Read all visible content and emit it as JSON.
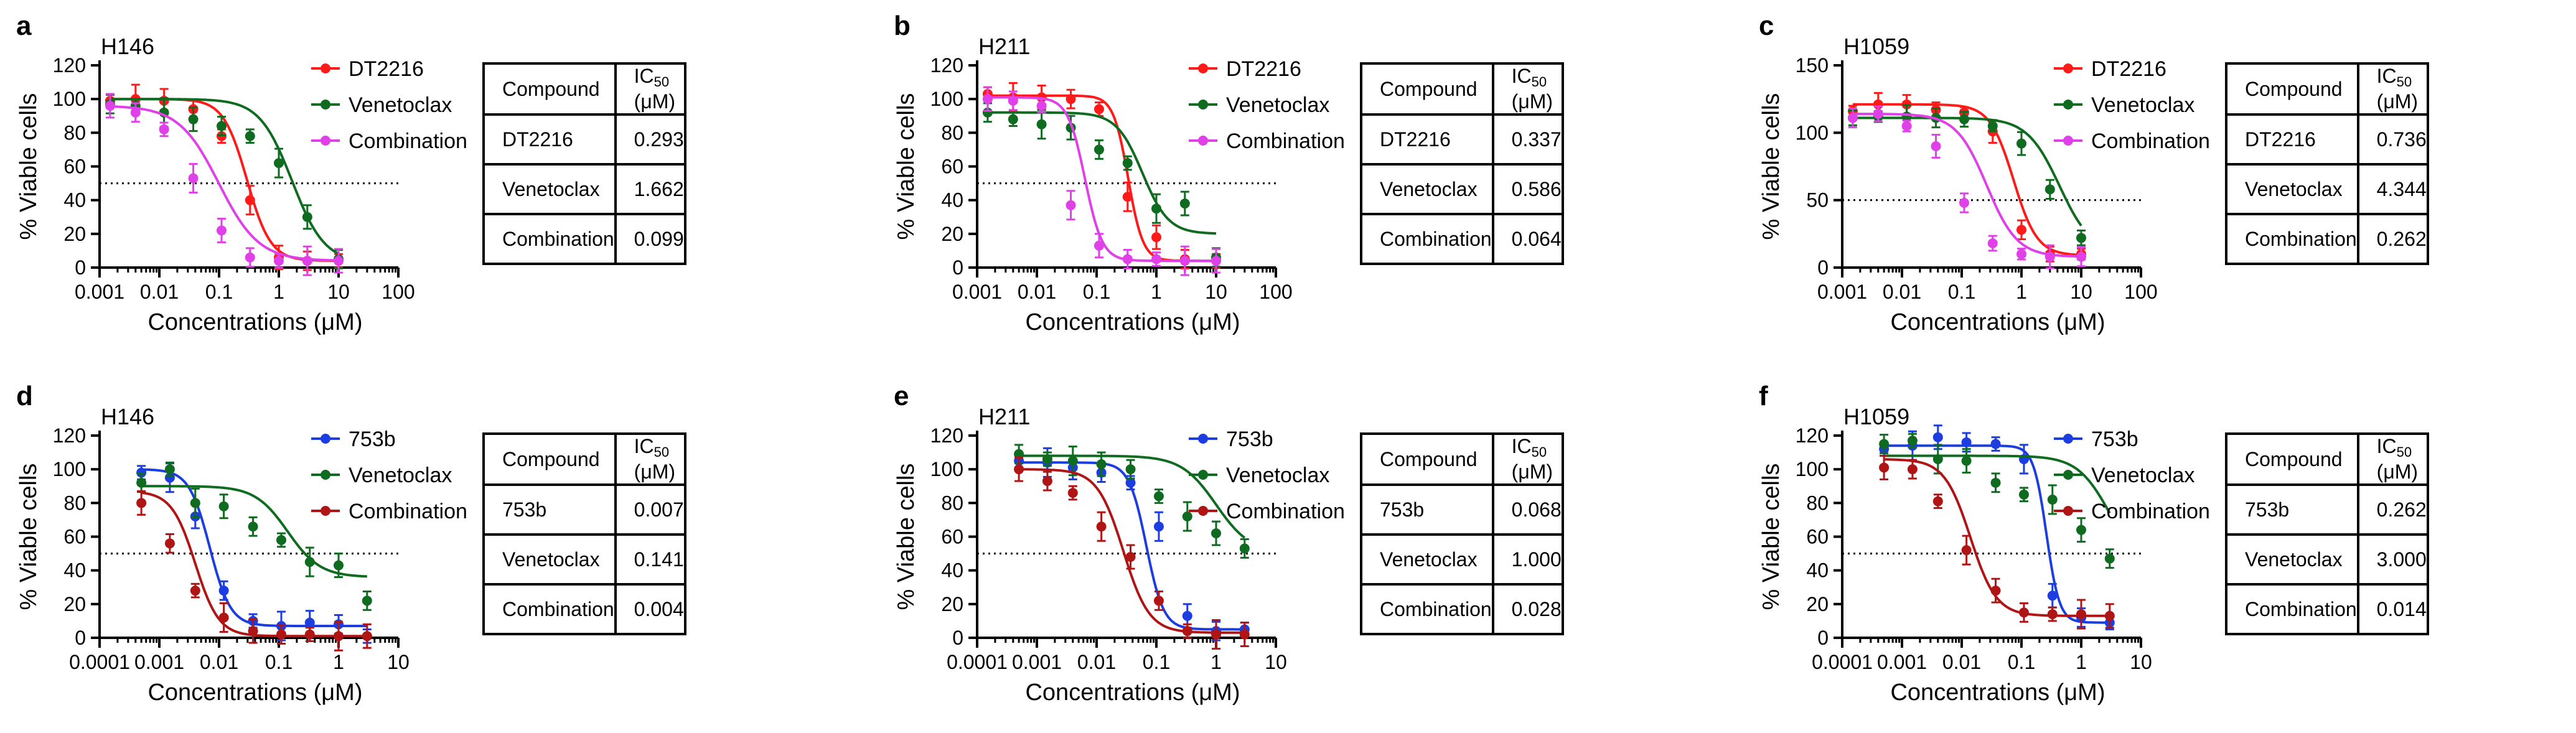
{
  "figure": {
    "xlabel": "Concentrations (μM)",
    "ylabel": "% Viable cells",
    "table_header": {
      "compound": "Compound",
      "ic50_prefix": "IC",
      "ic50_sub": "50",
      "ic50_suffix": " (μM)"
    },
    "panels": [
      {
        "letter": "a",
        "cell_line": "H146",
        "table_rows": [
          {
            "compound": "DT2216",
            "value": "0.293"
          },
          {
            "compound": "Venetoclax",
            "value": "1.662"
          },
          {
            "compound": "Combination",
            "value": "0.099"
          }
        ]
      },
      {
        "letter": "b",
        "cell_line": "H211",
        "table_rows": [
          {
            "compound": "DT2216",
            "value": "0.337"
          },
          {
            "compound": "Venetoclax",
            "value": "0.586"
          },
          {
            "compound": "Combination",
            "value": "0.064"
          }
        ]
      },
      {
        "letter": "c",
        "cell_line": "H1059",
        "table_rows": [
          {
            "compound": "DT2216",
            "value": "0.736"
          },
          {
            "compound": "Venetoclax",
            "value": "4.344"
          },
          {
            "compound": "Combination",
            "value": "0.262"
          }
        ]
      },
      {
        "letter": "d",
        "cell_line": "H146",
        "table_rows": [
          {
            "compound": "753b",
            "value": "0.007"
          },
          {
            "compound": "Venetoclax",
            "value": "0.141"
          },
          {
            "compound": "Combination",
            "value": "0.004"
          }
        ]
      },
      {
        "letter": "e",
        "cell_line": "H211",
        "table_rows": [
          {
            "compound": "753b",
            "value": "0.068"
          },
          {
            "compound": "Venetoclax",
            "value": "1.000"
          },
          {
            "compound": "Combination",
            "value": "0.028"
          }
        ]
      },
      {
        "letter": "f",
        "cell_line": "H1059",
        "table_rows": [
          {
            "compound": "753b",
            "value": "0.262"
          },
          {
            "compound": "Venetoclax",
            "value": "3.000"
          },
          {
            "compound": "Combination",
            "value": "0.014"
          }
        ]
      }
    ]
  },
  "chart_data": [
    {
      "type": "scatter",
      "title": "H146",
      "xlabel": "Concentrations (μM)",
      "ylabel": "% Viable cells",
      "xscale": "log",
      "xlim": [
        0.001,
        100
      ],
      "ylim": [
        0,
        120
      ],
      "x_ticks": [
        0.001,
        0.01,
        0.1,
        1,
        10,
        100
      ],
      "x_tick_labels": [
        "0.001",
        "0.01",
        "0.1",
        "1",
        "10",
        "100"
      ],
      "y_ticks": [
        0,
        20,
        40,
        60,
        80,
        100,
        120
      ],
      "y_tick_labels": [
        "0",
        "20",
        "40",
        "60",
        "80",
        "100",
        "120"
      ],
      "reference_line": 50,
      "series": [
        {
          "name": "DT2216",
          "color": "#ff1a1a",
          "ic50": 0.293,
          "hill": 2.2,
          "top": 100,
          "bottom": 4,
          "x": [
            0.0015,
            0.004,
            0.012,
            0.037,
            0.11,
            0.33,
            1.0,
            3.0,
            10.0
          ],
          "y": [
            99,
            100,
            99,
            94,
            78,
            40,
            6,
            4,
            4
          ]
        },
        {
          "name": "Venetoclax",
          "color": "#0e6b1f",
          "ic50": 1.662,
          "hill": 1.6,
          "top": 100,
          "bottom": 3,
          "x": [
            0.0015,
            0.004,
            0.012,
            0.037,
            0.11,
            0.33,
            1.0,
            3.0,
            10.0
          ],
          "y": [
            97,
            96,
            92,
            88,
            84,
            78,
            62,
            30,
            5
          ]
        },
        {
          "name": "Combination",
          "color": "#e040e8",
          "ic50": 0.099,
          "hill": 1.3,
          "top": 96,
          "bottom": 4,
          "x": [
            0.0015,
            0.004,
            0.012,
            0.037,
            0.11,
            0.33,
            1.0,
            3.0,
            10.0
          ],
          "y": [
            96,
            92,
            82,
            53,
            22,
            6,
            4,
            4,
            4
          ]
        }
      ]
    },
    {
      "type": "scatter",
      "title": "H211",
      "xlabel": "Concentrations (μM)",
      "ylabel": "% Viable cells",
      "xscale": "log",
      "xlim": [
        0.001,
        100
      ],
      "ylim": [
        0,
        120
      ],
      "x_ticks": [
        0.001,
        0.01,
        0.1,
        1,
        10,
        100
      ],
      "x_tick_labels": [
        "0.001",
        "0.01",
        "0.1",
        "1",
        "10",
        "100"
      ],
      "y_ticks": [
        0,
        20,
        40,
        60,
        80,
        100,
        120
      ],
      "y_tick_labels": [
        "0",
        "20",
        "40",
        "60",
        "80",
        "100",
        "120"
      ],
      "reference_line": 50,
      "series": [
        {
          "name": "DT2216",
          "color": "#ff1a1a",
          "ic50": 0.337,
          "hill": 3.5,
          "top": 102,
          "bottom": 4,
          "x": [
            0.0015,
            0.004,
            0.012,
            0.037,
            0.11,
            0.33,
            1.0,
            3.0,
            10.0
          ],
          "y": [
            103,
            101,
            101,
            100,
            94,
            42,
            18,
            5,
            4
          ]
        },
        {
          "name": "Venetoclax",
          "color": "#0e6b1f",
          "ic50": 0.586,
          "hill": 2.0,
          "top": 92,
          "bottom": 20,
          "x": [
            0.0015,
            0.004,
            0.012,
            0.037,
            0.11,
            0.33,
            1.0,
            3.0,
            10.0
          ],
          "y": [
            92,
            88,
            85,
            83,
            70,
            62,
            35,
            38,
            6
          ]
        },
        {
          "name": "Combination",
          "color": "#e040e8",
          "ic50": 0.064,
          "hill": 3.0,
          "top": 101,
          "bottom": 4,
          "x": [
            0.0015,
            0.004,
            0.012,
            0.037,
            0.11,
            0.33,
            1.0,
            3.0,
            10.0
          ],
          "y": [
            100,
            99,
            96,
            37,
            13,
            5,
            5,
            4,
            4
          ]
        }
      ]
    },
    {
      "type": "scatter",
      "title": "H1059",
      "xlabel": "Concentrations (μM)",
      "ylabel": "% Viable cells",
      "xscale": "log",
      "xlim": [
        0.001,
        100
      ],
      "ylim": [
        0,
        150
      ],
      "x_ticks": [
        0.001,
        0.01,
        0.1,
        1,
        10,
        100
      ],
      "x_tick_labels": [
        "0.001",
        "0.01",
        "0.1",
        "1",
        "10",
        "100"
      ],
      "y_ticks": [
        0,
        50,
        100,
        150
      ],
      "y_tick_labels": [
        "0",
        "50",
        "100",
        "150"
      ],
      "reference_line": 50,
      "series": [
        {
          "name": "DT2216",
          "color": "#ff1a1a",
          "ic50": 0.736,
          "hill": 2.2,
          "top": 121,
          "bottom": 9,
          "x": [
            0.0015,
            0.004,
            0.012,
            0.037,
            0.11,
            0.33,
            1.0,
            3.0,
            10.0
          ],
          "y": [
            116,
            121,
            121,
            117,
            115,
            101,
            28,
            10,
            10
          ]
        },
        {
          "name": "Venetoclax",
          "color": "#0e6b1f",
          "ic50": 4.344,
          "hill": 1.6,
          "top": 111,
          "bottom": 10,
          "x": [
            0.0015,
            0.004,
            0.012,
            0.037,
            0.11,
            0.33,
            1.0,
            3.0,
            10.0
          ],
          "y": [
            111,
            112,
            112,
            111,
            110,
            105,
            92,
            58,
            22
          ]
        },
        {
          "name": "Combination",
          "color": "#e040e8",
          "ic50": 0.262,
          "hill": 1.7,
          "top": 114,
          "bottom": 8,
          "x": [
            0.0015,
            0.004,
            0.012,
            0.037,
            0.11,
            0.33,
            1.0,
            3.0,
            10.0
          ],
          "y": [
            111,
            114,
            105,
            90,
            48,
            18,
            10,
            8,
            8
          ]
        }
      ]
    },
    {
      "type": "scatter",
      "title": "H146",
      "xlabel": "Concentrations (μM)",
      "ylabel": "% Viable cells",
      "xscale": "log",
      "xlim": [
        0.0001,
        10
      ],
      "ylim": [
        0,
        120
      ],
      "x_ticks": [
        0.0001,
        0.001,
        0.01,
        0.1,
        1,
        10
      ],
      "x_tick_labels": [
        "0.0001",
        "0.001",
        "0.01",
        "0.1",
        "1",
        "10"
      ],
      "y_ticks": [
        0,
        20,
        40,
        60,
        80,
        100,
        120
      ],
      "y_tick_labels": [
        "0",
        "20",
        "40",
        "60",
        "80",
        "100",
        "120"
      ],
      "reference_line": 50,
      "series": [
        {
          "name": "753b",
          "color": "#1c3de0",
          "ic50": 0.007,
          "hill": 2.5,
          "top": 100,
          "bottom": 7,
          "x": [
            0.0005,
            0.0015,
            0.004,
            0.012,
            0.037,
            0.11,
            0.33,
            1.0,
            3.0
          ],
          "y": [
            98,
            95,
            72,
            28,
            10,
            7,
            9,
            8,
            1
          ]
        },
        {
          "name": "Venetoclax",
          "color": "#0e6b1f",
          "ic50": 0.141,
          "hill": 1.6,
          "top": 90,
          "bottom": 36,
          "x": [
            0.0005,
            0.0015,
            0.004,
            0.012,
            0.037,
            0.11,
            0.33,
            1.0,
            3.0
          ],
          "y": [
            92,
            100,
            80,
            78,
            66,
            58,
            45,
            43,
            22
          ]
        },
        {
          "name": "Combination",
          "color": "#b01515",
          "ic50": 0.004,
          "hill": 2.2,
          "top": 87,
          "bottom": 1,
          "x": [
            0.0005,
            0.0015,
            0.004,
            0.012,
            0.037,
            0.11,
            0.33,
            1.0,
            3.0
          ],
          "y": [
            80,
            56,
            28,
            12,
            4,
            2,
            2,
            1,
            1
          ]
        }
      ]
    },
    {
      "type": "scatter",
      "title": "H211",
      "xlabel": "Concentrations (μM)",
      "ylabel": "% Viable cells",
      "xscale": "log",
      "xlim": [
        0.0001,
        10
      ],
      "ylim": [
        0,
        120
      ],
      "x_ticks": [
        0.0001,
        0.001,
        0.01,
        0.1,
        1,
        10
      ],
      "x_tick_labels": [
        "0.0001",
        "0.001",
        "0.01",
        "0.1",
        "1",
        "10"
      ],
      "y_ticks": [
        0,
        20,
        40,
        60,
        80,
        100,
        120
      ],
      "y_tick_labels": [
        "0",
        "20",
        "40",
        "60",
        "80",
        "100",
        "120"
      ],
      "reference_line": 50,
      "series": [
        {
          "name": "753b",
          "color": "#1c3de0",
          "ic50": 0.068,
          "hill": 3.0,
          "top": 104,
          "bottom": 5,
          "x": [
            0.0005,
            0.0015,
            0.004,
            0.012,
            0.037,
            0.11,
            0.33,
            1.0,
            3.0
          ],
          "y": [
            105,
            104,
            101,
            98,
            92,
            66,
            13,
            4,
            5
          ]
        },
        {
          "name": "Venetoclax",
          "color": "#0e6b1f",
          "ic50": 1.0,
          "hill": 1.5,
          "top": 108,
          "bottom": 50,
          "x": [
            0.0005,
            0.0015,
            0.004,
            0.012,
            0.037,
            0.11,
            0.33,
            1.0,
            3.0
          ],
          "y": [
            109,
            106,
            105,
            103,
            100,
            84,
            72,
            62,
            53
          ]
        },
        {
          "name": "Combination",
          "color": "#b01515",
          "ic50": 0.028,
          "hill": 2.0,
          "top": 100,
          "bottom": 3,
          "x": [
            0.0005,
            0.0015,
            0.004,
            0.012,
            0.037,
            0.11,
            0.33,
            1.0,
            3.0
          ],
          "y": [
            100,
            93,
            86,
            66,
            48,
            22,
            4,
            2,
            2
          ]
        }
      ]
    },
    {
      "type": "scatter",
      "title": "H1059",
      "xlabel": "Concentrations (μM)",
      "ylabel": "% Viable cells",
      "xscale": "log",
      "xlim": [
        0.0001,
        10
      ],
      "ylim": [
        0,
        120
      ],
      "x_ticks": [
        0.0001,
        0.001,
        0.01,
        0.1,
        1,
        10
      ],
      "x_tick_labels": [
        "0.0001",
        "0.001",
        "0.01",
        "0.1",
        "1",
        "10"
      ],
      "y_ticks": [
        0,
        20,
        40,
        60,
        80,
        100,
        120
      ],
      "y_tick_labels": [
        "0",
        "20",
        "40",
        "60",
        "80",
        "100",
        "120"
      ],
      "reference_line": 50,
      "series": [
        {
          "name": "753b",
          "color": "#1c3de0",
          "ic50": 0.262,
          "hill": 4.0,
          "top": 114,
          "bottom": 9,
          "x": [
            0.0005,
            0.0015,
            0.004,
            0.012,
            0.037,
            0.11,
            0.33,
            1.0,
            3.0
          ],
          "y": [
            112,
            114,
            119,
            116,
            115,
            106,
            25,
            12,
            9
          ]
        },
        {
          "name": "Venetoclax",
          "color": "#0e6b1f",
          "ic50": 3.0,
          "hill": 1.6,
          "top": 108,
          "bottom": 40,
          "x": [
            0.0005,
            0.0015,
            0.004,
            0.012,
            0.037,
            0.11,
            0.33,
            1.0,
            3.0
          ],
          "y": [
            115,
            117,
            106,
            105,
            92,
            85,
            82,
            64,
            47
          ]
        },
        {
          "name": "Combination",
          "color": "#b01515",
          "ic50": 0.014,
          "hill": 2.0,
          "top": 106,
          "bottom": 13,
          "x": [
            0.0005,
            0.0015,
            0.004,
            0.012,
            0.037,
            0.11,
            0.33,
            1.0,
            3.0
          ],
          "y": [
            101,
            100,
            81,
            52,
            28,
            15,
            14,
            14,
            13
          ]
        }
      ]
    }
  ]
}
